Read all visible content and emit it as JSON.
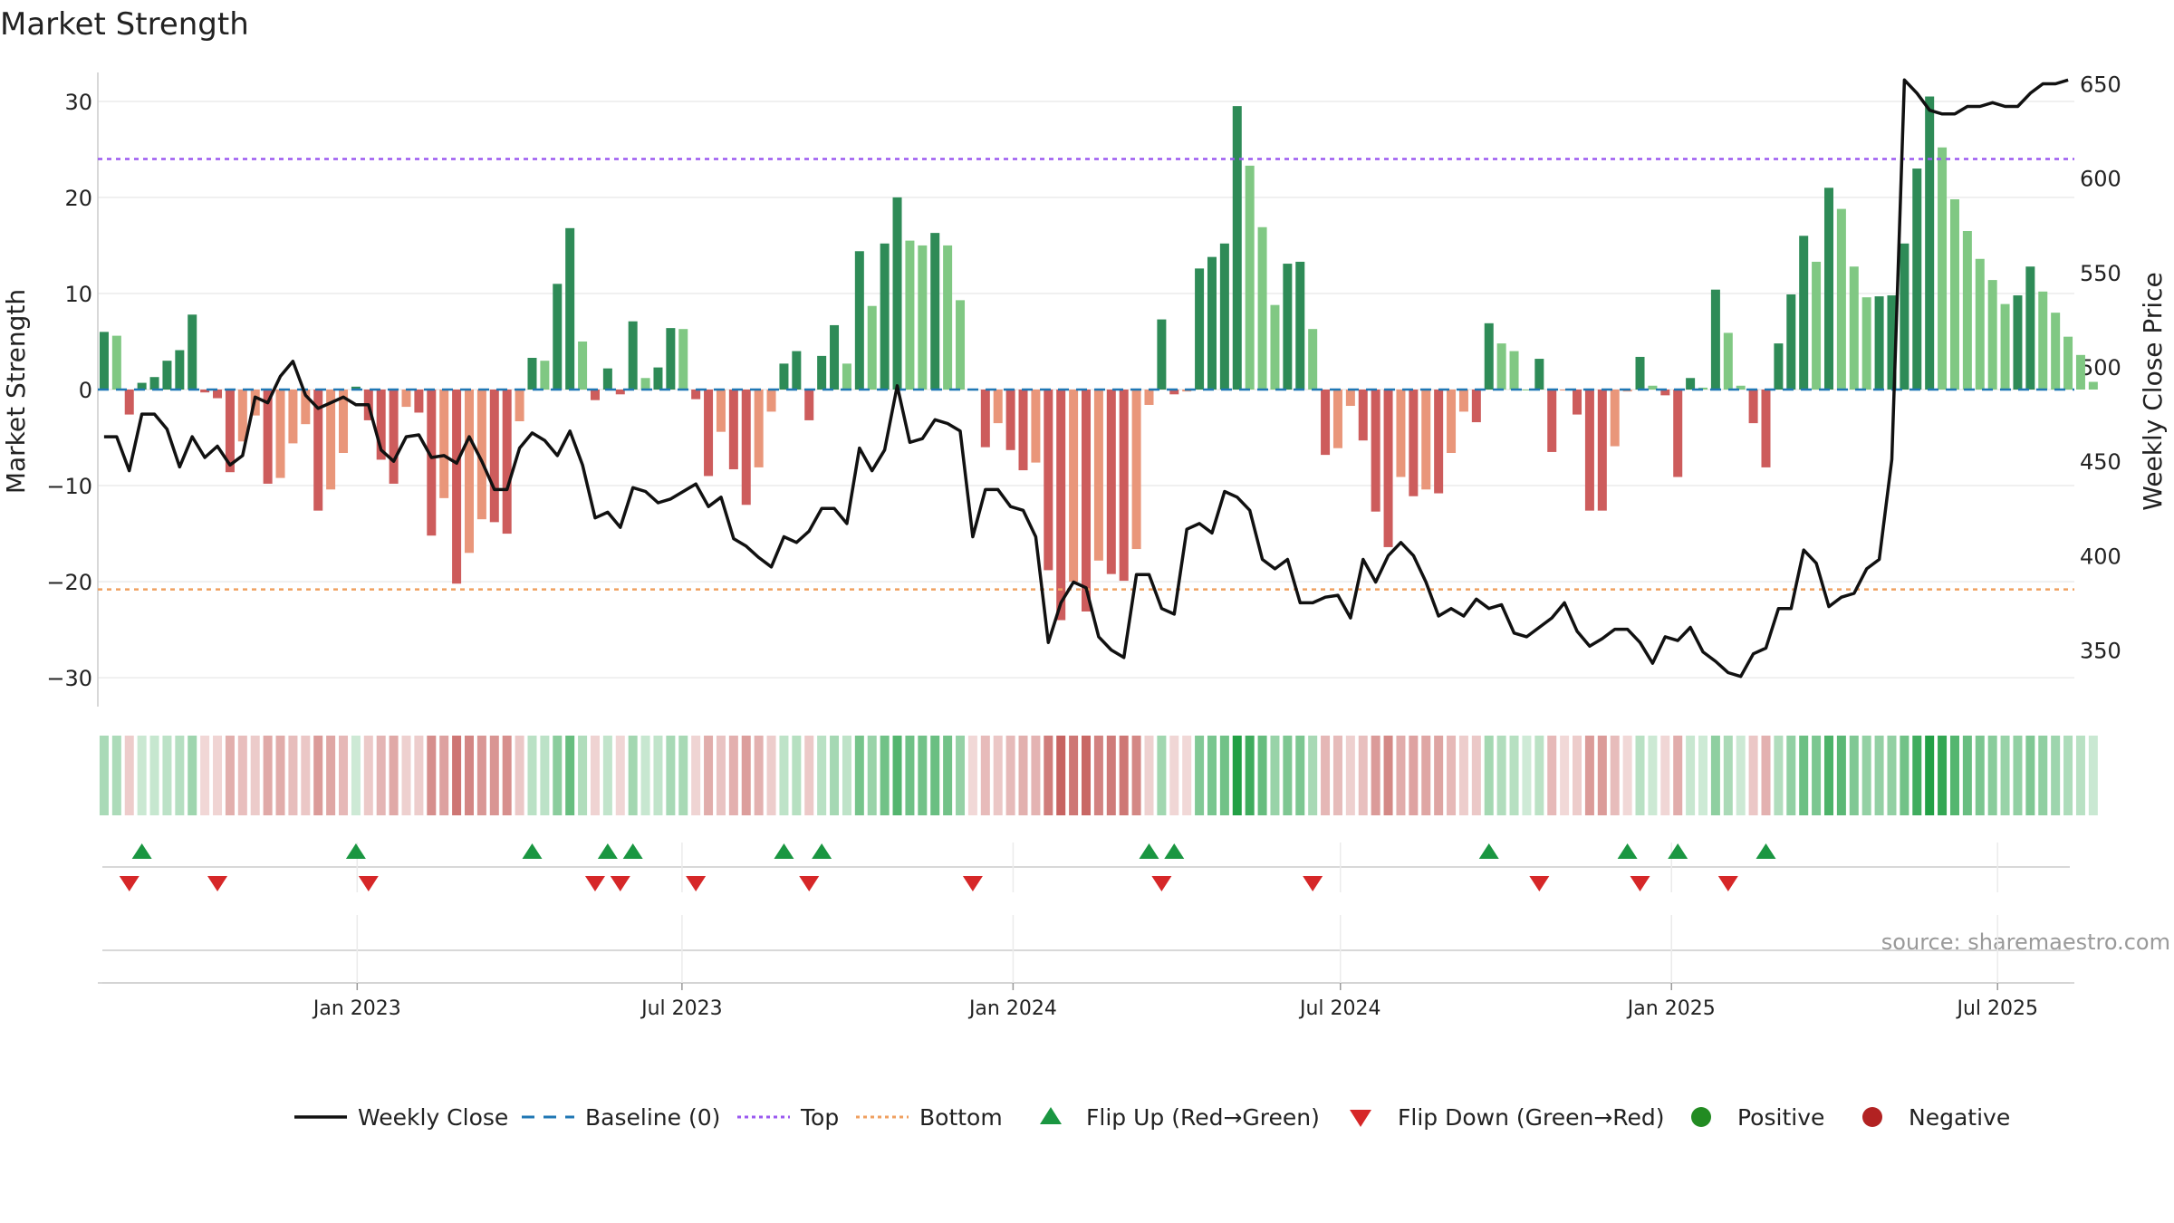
{
  "chart_data": {
    "type": "bar+line",
    "title": "Market Strength",
    "ylabel_left": "Market Strength",
    "ylabel_right": "Weekly Close Price",
    "source": "source: sharemaestro.com",
    "y_left_range": [
      -33,
      33
    ],
    "y_left_ticks": [
      30,
      20,
      10,
      0,
      -10,
      -20,
      -30
    ],
    "y_left_tick_labels": [
      "30",
      "20",
      "10",
      "0",
      "−10",
      "−20",
      "−30"
    ],
    "y_right_range": [
      320,
      656
    ],
    "y_right_ticks": [
      650,
      600,
      550,
      500,
      450,
      400,
      350
    ],
    "y_right_tick_labels": [
      "650",
      "600",
      "550",
      "500",
      "450",
      "400",
      "350"
    ],
    "x_range_weeks": [
      0,
      157
    ],
    "x_ticks_week_index": [
      20.6,
      46.4,
      72.7,
      98.7,
      125,
      150.9
    ],
    "x_tick_labels": [
      "Jan 2023",
      "Jul 2023",
      "Jan 2024",
      "Jul 2024",
      "Jan 2025",
      "Jul 2025"
    ],
    "top_threshold": 24,
    "bottom_threshold": -20.8,
    "strength": [
      6,
      5.6,
      -2.6,
      0.7,
      1.3,
      3,
      4.1,
      7.8,
      -0.3,
      -0.9,
      -8.6,
      -5.4,
      -2.7,
      -9.8,
      -9.2,
      -5.6,
      -3.6,
      -12.6,
      -10.4,
      -6.6,
      0.3,
      -3.2,
      -7.3,
      -9.8,
      -1.8,
      -2.4,
      -15.2,
      -11.3,
      -20.2,
      -17,
      -13.5,
      -13.8,
      -15,
      -3.3,
      3.3,
      3,
      11,
      16.8,
      5,
      -1.1,
      2.2,
      -0.5,
      7.1,
      1.2,
      2.3,
      6.4,
      6.3,
      -1,
      -9,
      -4.4,
      -8.3,
      -12,
      -8.1,
      -2.3,
      2.7,
      4,
      -3.2,
      3.5,
      6.7,
      2.7,
      14.4,
      8.7,
      15.2,
      20,
      15.5,
      15,
      16.3,
      15,
      9.3,
      -0.1,
      -6,
      -3.5,
      -6.3,
      -8.4,
      -7.6,
      -18.8,
      -24,
      -20,
      -23.1,
      -17.8,
      -19.2,
      -19.9,
      -16.6,
      -1.6,
      7.3,
      -0.5,
      -0.2,
      12.6,
      13.8,
      15.2,
      29.5,
      23.3,
      16.9,
      8.8,
      13.1,
      13.3,
      6.3,
      -6.8,
      -6.1,
      -1.7,
      -5.3,
      -12.7,
      -16.4,
      -9.1,
      -11.1,
      -10.4,
      -10.8,
      -6.6,
      -2.3,
      -3.4,
      6.9,
      4.8,
      4,
      0,
      3.2,
      -6.5,
      -0.1,
      -2.6,
      -12.6,
      -12.6,
      -5.9,
      -0.2,
      3.4,
      0.4,
      -0.6,
      -9.1,
      1.2,
      0.2,
      10.4,
      5.9,
      0.4,
      -3.5,
      -8.1,
      4.8,
      9.9,
      16,
      13.3,
      21,
      18.8,
      12.8,
      9.6,
      9.7,
      9.8,
      15.2,
      23,
      30.5,
      25.2,
      19.8,
      16.5,
      13.6,
      11.4,
      8.9,
      9.8,
      12.8,
      10.2,
      8,
      5.5,
      3.6,
      0.8
    ],
    "weekly_close": [
      463,
      463,
      445,
      475,
      475,
      467,
      447,
      463,
      452,
      458,
      448,
      453,
      484,
      481,
      495,
      503,
      485,
      478,
      481,
      484,
      480,
      480,
      456,
      450,
      463,
      464,
      452,
      453,
      449,
      463,
      450,
      435,
      435,
      457,
      465,
      461,
      453,
      466,
      448,
      420,
      423,
      415,
      436,
      434,
      428,
      430,
      434,
      438,
      426,
      431,
      409,
      405,
      399,
      394,
      410,
      407,
      413,
      425,
      425,
      417,
      457,
      445,
      456,
      490,
      460,
      462,
      472,
      470,
      466,
      410,
      435,
      435,
      426,
      424,
      410,
      354,
      375,
      386,
      383,
      357,
      350,
      346,
      390,
      390,
      372,
      369,
      414,
      417,
      412,
      434,
      431,
      424,
      398,
      393,
      398,
      375,
      375,
      378,
      379,
      367,
      398,
      386,
      400,
      407,
      400,
      386,
      368,
      372,
      368,
      377,
      372,
      374,
      359,
      357,
      362,
      367,
      375,
      360,
      352,
      356,
      361,
      361,
      354,
      343,
      357,
      355,
      362,
      349,
      344,
      338,
      336,
      348,
      351,
      372,
      372,
      403,
      396,
      373,
      378,
      380,
      393,
      398,
      451,
      652,
      645,
      636,
      634,
      634,
      638,
      638,
      640,
      638,
      638,
      645,
      650,
      650,
      652
    ],
    "flip_up_weeks": [
      3,
      20,
      34,
      40,
      42,
      54,
      57,
      83,
      85,
      110,
      121,
      125,
      132
    ],
    "flip_down_weeks": [
      2,
      9,
      21,
      39,
      41,
      47,
      56,
      69,
      84,
      96,
      114,
      122,
      129
    ],
    "colors": {
      "pos_dark": "#2e8b57",
      "pos_light": "#80c883",
      "neg_dark": "#cd5c5c",
      "neg_light": "#e9967a",
      "line": "#111111",
      "baseline": "#1f77b4",
      "top": "#9b59f0",
      "bottom": "#f0a060",
      "flip_up": "#1a9641",
      "flip_down": "#d62728",
      "positive_dot": "#228b22",
      "negative_dot": "#b22222",
      "grid": "#ebebeb",
      "axis": "#cccccc"
    },
    "legend": [
      {
        "key": "weekly-close",
        "label": "Weekly Close"
      },
      {
        "key": "baseline",
        "label": "Baseline (0)"
      },
      {
        "key": "top",
        "label": "Top"
      },
      {
        "key": "bottom",
        "label": "Bottom"
      },
      {
        "key": "flip-up",
        "label": "Flip Up (Red→Green)"
      },
      {
        "key": "flip-down",
        "label": "Flip Down (Green→Red)"
      },
      {
        "key": "positive",
        "label": "Positive"
      },
      {
        "key": "negative",
        "label": "Negative"
      }
    ]
  }
}
